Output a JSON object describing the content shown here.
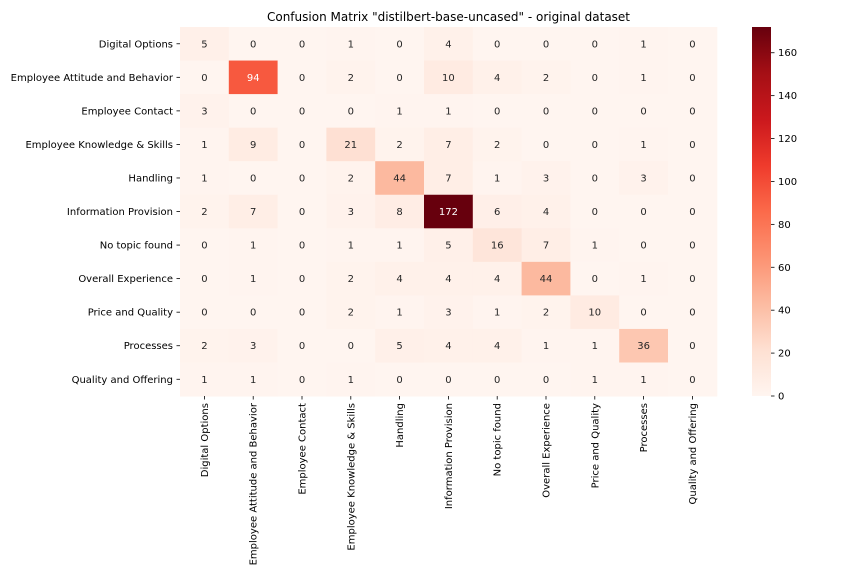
{
  "chart_data": {
    "type": "heatmap",
    "title": "Confusion Matrix \"distilbert-base-uncased\" - original dataset",
    "row_labels": [
      "Digital Options",
      "Employee Attitude and Behavior",
      "Employee Contact",
      "Employee Knowledge & Skills",
      "Handling",
      "Information Provision",
      "No topic found",
      "Overall Experience",
      "Price and Quality",
      "Processes",
      "Quality and Offering"
    ],
    "col_labels": [
      "Digital Options",
      "Employee Attitude and Behavior",
      "Employee Contact",
      "Employee Knowledge & Skills",
      "Handling",
      "Information Provision",
      "No topic found",
      "Overall Experience",
      "Price and Quality",
      "Processes",
      "Quality and Offering"
    ],
    "values": [
      [
        5,
        0,
        0,
        1,
        0,
        4,
        0,
        0,
        0,
        1,
        0
      ],
      [
        0,
        94,
        0,
        2,
        0,
        10,
        4,
        2,
        0,
        1,
        0
      ],
      [
        3,
        0,
        0,
        0,
        1,
        1,
        0,
        0,
        0,
        0,
        0
      ],
      [
        1,
        9,
        0,
        21,
        2,
        7,
        2,
        0,
        0,
        1,
        0
      ],
      [
        1,
        0,
        0,
        2,
        44,
        7,
        1,
        3,
        0,
        3,
        0
      ],
      [
        2,
        7,
        0,
        3,
        8,
        172,
        6,
        4,
        0,
        0,
        0
      ],
      [
        0,
        1,
        0,
        1,
        1,
        5,
        16,
        7,
        1,
        0,
        0
      ],
      [
        0,
        1,
        0,
        2,
        4,
        4,
        4,
        44,
        0,
        1,
        0
      ],
      [
        0,
        0,
        0,
        2,
        1,
        3,
        1,
        2,
        10,
        0,
        0
      ],
      [
        2,
        3,
        0,
        0,
        5,
        4,
        4,
        1,
        1,
        36,
        0
      ],
      [
        1,
        1,
        0,
        1,
        0,
        0,
        0,
        0,
        1,
        1,
        0
      ]
    ],
    "colorbar": {
      "min": 0,
      "max": 172,
      "ticks": [
        0,
        20,
        40,
        60,
        80,
        100,
        120,
        140,
        160
      ]
    },
    "colormap": "Reds",
    "colors": {
      "low": "#fff5f0",
      "high": "#67000d"
    }
  }
}
